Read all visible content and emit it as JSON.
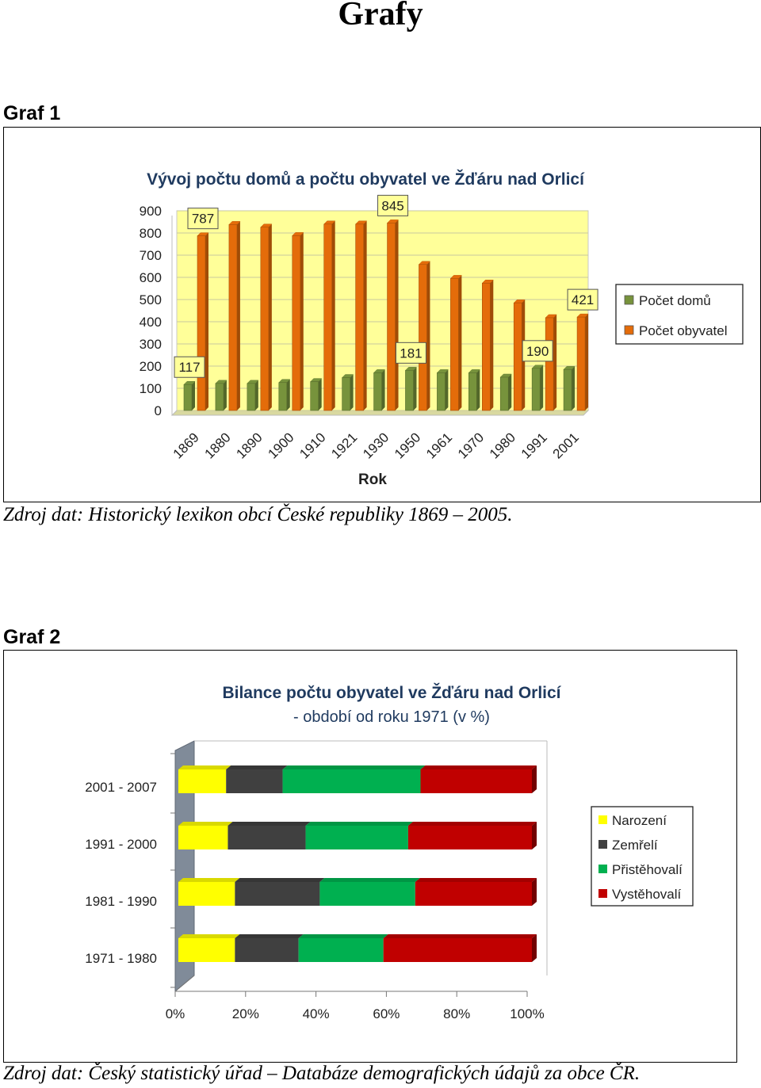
{
  "page": {
    "title": "Grafy",
    "graf1_heading": "Graf 1",
    "graf1_source": "Zdroj dat: Historický lexikon obcí České republiky 1869 – 2005.",
    "graf2_heading": "Graf 2",
    "graf2_source": "Zdroj dat: Český statistický úřad – Databáze demografických údajů za obce ČR."
  },
  "colors": {
    "houses": "#77933c",
    "population": "#e46c0a",
    "plot_bg": "#ffff99",
    "narozeni": "#ffff00",
    "zemreli": "#404040",
    "pristehovali": "#00b050",
    "vystehovali": "#c00000"
  },
  "chart_data": [
    {
      "type": "bar",
      "title": "Vývoj počtu domů a počtu obyvatel ve Žďáru nad Orlicí",
      "xlabel": "Rok",
      "ylabel": "",
      "categories": [
        "1869",
        "1880",
        "1890",
        "1900",
        "1910",
        "1921",
        "1930",
        "1950",
        "1961",
        "1970",
        "1980",
        "1991",
        "2001"
      ],
      "yticks": [
        "0",
        "100",
        "200",
        "300",
        "400",
        "500",
        "600",
        "700",
        "800",
        "900"
      ],
      "ylim": [
        0,
        900
      ],
      "series": [
        {
          "name": "Počet domů",
          "values": [
            117,
            122,
            122,
            126,
            130,
            148,
            170,
            181,
            170,
            170,
            150,
            190,
            185
          ]
        },
        {
          "name": "Počet obyvatel",
          "values": [
            787,
            838,
            826,
            788,
            840,
            840,
            845,
            658,
            595,
            574,
            485,
            418,
            421
          ]
        }
      ],
      "data_labels": [
        {
          "series": "Počet domů",
          "category": "1869",
          "text": "117"
        },
        {
          "series": "Počet obyvatel",
          "category": "1869",
          "text": "787"
        },
        {
          "series": "Počet domů",
          "category": "1950",
          "text": "181"
        },
        {
          "series": "Počet obyvatel",
          "category": "1930",
          "text": "845"
        },
        {
          "series": "Počet domů",
          "category": "1991",
          "text": "190"
        },
        {
          "series": "Počet obyvatel",
          "category": "2001",
          "text": "421"
        }
      ],
      "legend": "right",
      "grid": true
    },
    {
      "type": "bar",
      "stacked": "100%",
      "orientation": "horizontal",
      "title": "Bilance počtu obyvatel  ve Žďáru nad Orlicí",
      "subtitle": "- období od roku 1971 (v %)",
      "categories": [
        "2001 - 2007",
        "1991 - 2000",
        "1981 - 1990",
        "1971 - 1980"
      ],
      "xticks": [
        "0%",
        "20%",
        "40%",
        "60%",
        "80%",
        "100%"
      ],
      "xlim": [
        0,
        100
      ],
      "series": [
        {
          "name": "Narození",
          "values": [
            13.5,
            14,
            16,
            16
          ]
        },
        {
          "name": "Zemřelí",
          "values": [
            16,
            22,
            24,
            18
          ]
        },
        {
          "name": "Přistěhovalí",
          "values": [
            39,
            29,
            27,
            24
          ]
        },
        {
          "name": "Vystěhovalí",
          "values": [
            31.5,
            35,
            33,
            42
          ]
        }
      ],
      "legend": "right",
      "grid": false
    }
  ]
}
